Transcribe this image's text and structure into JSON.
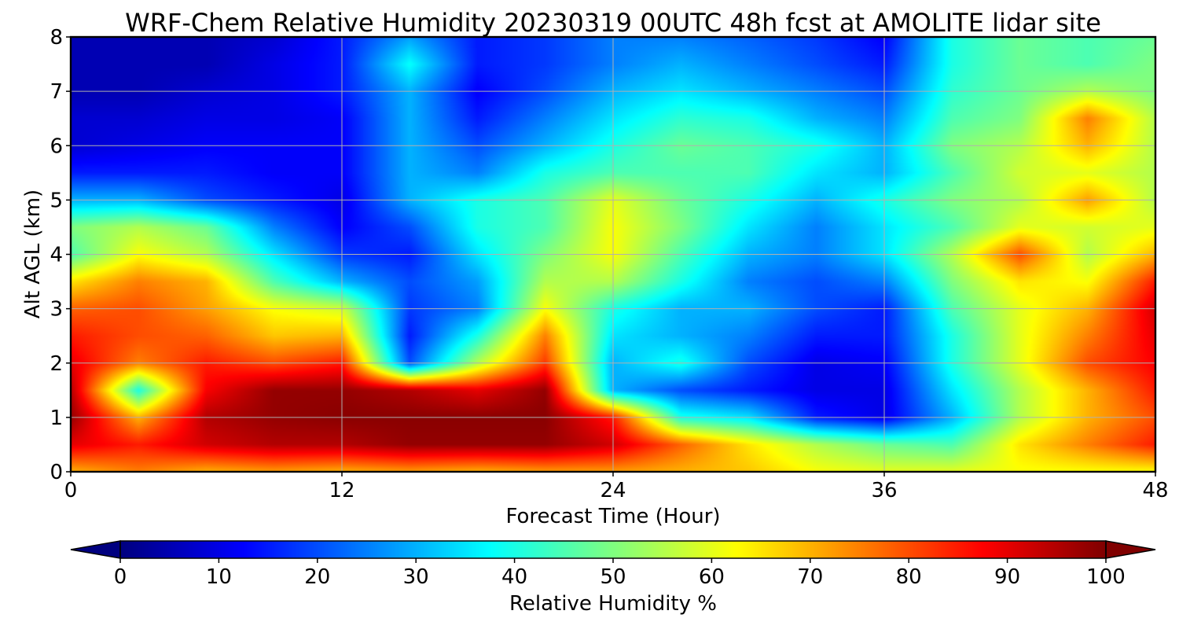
{
  "chart_data": {
    "type": "heatmap",
    "title": "WRF-Chem Relative Humidity 20230319 00UTC 48h fcst at AMOLITE lidar site",
    "xlabel": "Forecast Time (Hour)",
    "ylabel": "Alt AGL (km)",
    "xlim": [
      0,
      48
    ],
    "ylim": [
      0,
      8
    ],
    "xticks": [
      0,
      12,
      24,
      36,
      48
    ],
    "yticks": [
      0,
      1,
      2,
      3,
      4,
      5,
      6,
      7,
      8
    ],
    "grid": true,
    "colorbar": {
      "label": "Relative Humidity %",
      "range": [
        0,
        100
      ],
      "ticks": [
        0,
        10,
        20,
        30,
        40,
        50,
        60,
        70,
        80,
        90,
        100
      ],
      "colormap": "jet",
      "extend": "both",
      "orientation": "horizontal",
      "placement": "bottom"
    },
    "z_units": "%",
    "x": [
      0,
      3,
      6,
      9,
      12,
      15,
      18,
      21,
      24,
      27,
      30,
      33,
      36,
      39,
      42,
      45,
      48
    ],
    "y": [
      0,
      0.5,
      1,
      1.5,
      2,
      2.5,
      3,
      3.5,
      4,
      4.5,
      5,
      5.5,
      6,
      6.5,
      7,
      7.5,
      8
    ],
    "z": [
      [
        70,
        75,
        70,
        72,
        70,
        72,
        70,
        72,
        72,
        70,
        68,
        62,
        60,
        60,
        62,
        62,
        62
      ],
      [
        90,
        85,
        92,
        95,
        95,
        98,
        98,
        98,
        92,
        78,
        65,
        55,
        48,
        45,
        65,
        75,
        85
      ],
      [
        98,
        70,
        95,
        98,
        99,
        99,
        99,
        99,
        85,
        40,
        35,
        15,
        10,
        30,
        55,
        70,
        80
      ],
      [
        95,
        40,
        88,
        98,
        98,
        95,
        90,
        98,
        30,
        20,
        15,
        10,
        10,
        35,
        55,
        70,
        85
      ],
      [
        90,
        75,
        85,
        80,
        85,
        20,
        55,
        82,
        30,
        40,
        20,
        10,
        12,
        40,
        60,
        80,
        88
      ],
      [
        85,
        80,
        78,
        68,
        70,
        15,
        40,
        75,
        35,
        30,
        25,
        15,
        15,
        40,
        60,
        75,
        90
      ],
      [
        78,
        80,
        72,
        62,
        58,
        18,
        25,
        62,
        40,
        30,
        30,
        20,
        15,
        45,
        60,
        70,
        92
      ],
      [
        65,
        75,
        70,
        45,
        30,
        20,
        28,
        55,
        55,
        40,
        25,
        20,
        25,
        50,
        65,
        62,
        85
      ],
      [
        45,
        62,
        55,
        35,
        18,
        15,
        35,
        50,
        62,
        45,
        30,
        25,
        35,
        55,
        80,
        55,
        70
      ],
      [
        50,
        55,
        48,
        25,
        12,
        20,
        40,
        45,
        62,
        50,
        35,
        25,
        35,
        45,
        60,
        58,
        60
      ],
      [
        30,
        30,
        20,
        15,
        10,
        30,
        40,
        45,
        60,
        48,
        40,
        30,
        40,
        50,
        55,
        72,
        55
      ],
      [
        15,
        15,
        15,
        12,
        12,
        30,
        25,
        40,
        45,
        45,
        45,
        35,
        30,
        45,
        58,
        60,
        55
      ],
      [
        8,
        10,
        12,
        12,
        12,
        30,
        20,
        30,
        40,
        48,
        45,
        40,
        30,
        50,
        55,
        70,
        55
      ],
      [
        8,
        8,
        10,
        10,
        12,
        30,
        15,
        25,
        35,
        42,
        40,
        30,
        25,
        45,
        50,
        75,
        55
      ],
      [
        5,
        5,
        8,
        10,
        15,
        30,
        12,
        20,
        30,
        35,
        30,
        25,
        20,
        42,
        48,
        55,
        50
      ],
      [
        5,
        5,
        5,
        10,
        15,
        38,
        15,
        18,
        25,
        30,
        25,
        20,
        15,
        40,
        48,
        45,
        50
      ],
      [
        5,
        5,
        5,
        8,
        15,
        28,
        15,
        18,
        25,
        25,
        22,
        18,
        12,
        40,
        48,
        45,
        48
      ]
    ]
  }
}
